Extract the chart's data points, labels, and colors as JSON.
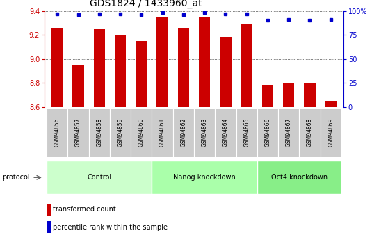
{
  "title": "GDS1824 / 1433960_at",
  "samples": [
    "GSM94856",
    "GSM94857",
    "GSM94858",
    "GSM94859",
    "GSM94860",
    "GSM94861",
    "GSM94862",
    "GSM94863",
    "GSM94864",
    "GSM94865",
    "GSM94866",
    "GSM94867",
    "GSM94868",
    "GSM94869"
  ],
  "bar_values": [
    9.26,
    8.95,
    9.25,
    9.2,
    9.15,
    9.35,
    9.26,
    9.35,
    9.18,
    9.29,
    8.78,
    8.8,
    8.8,
    8.65
  ],
  "dot_values": [
    97,
    96,
    97,
    97,
    96,
    98,
    96,
    98,
    97,
    97,
    90,
    91,
    90,
    91
  ],
  "ylim": [
    8.6,
    9.4
  ],
  "yticks": [
    8.6,
    8.8,
    9.0,
    9.2,
    9.4
  ],
  "y2lim": [
    0,
    100
  ],
  "y2ticks": [
    0,
    25,
    50,
    75,
    100
  ],
  "y2ticklabels": [
    "0",
    "25",
    "50",
    "75",
    "100%"
  ],
  "bar_color": "#CC0000",
  "dot_color": "#0000CC",
  "bar_bottom": 8.6,
  "groups": [
    {
      "label": "Control",
      "start": 0,
      "end": 5,
      "color": "#ccffcc"
    },
    {
      "label": "Nanog knockdown",
      "start": 5,
      "end": 10,
      "color": "#aaffaa"
    },
    {
      "label": "Oct4 knockdown",
      "start": 10,
      "end": 14,
      "color": "#88ee88"
    }
  ],
  "protocol_label": "protocol",
  "legend_bar_label": "transformed count",
  "legend_dot_label": "percentile rank within the sample",
  "grid_color": "#888888",
  "bg_color": "#ffffff",
  "plot_bg": "#ffffff",
  "sample_bg": "#cccccc",
  "title_fontsize": 10,
  "axis_tick_fontsize": 7,
  "label_fontsize": 7,
  "sample_fontsize": 5.5
}
